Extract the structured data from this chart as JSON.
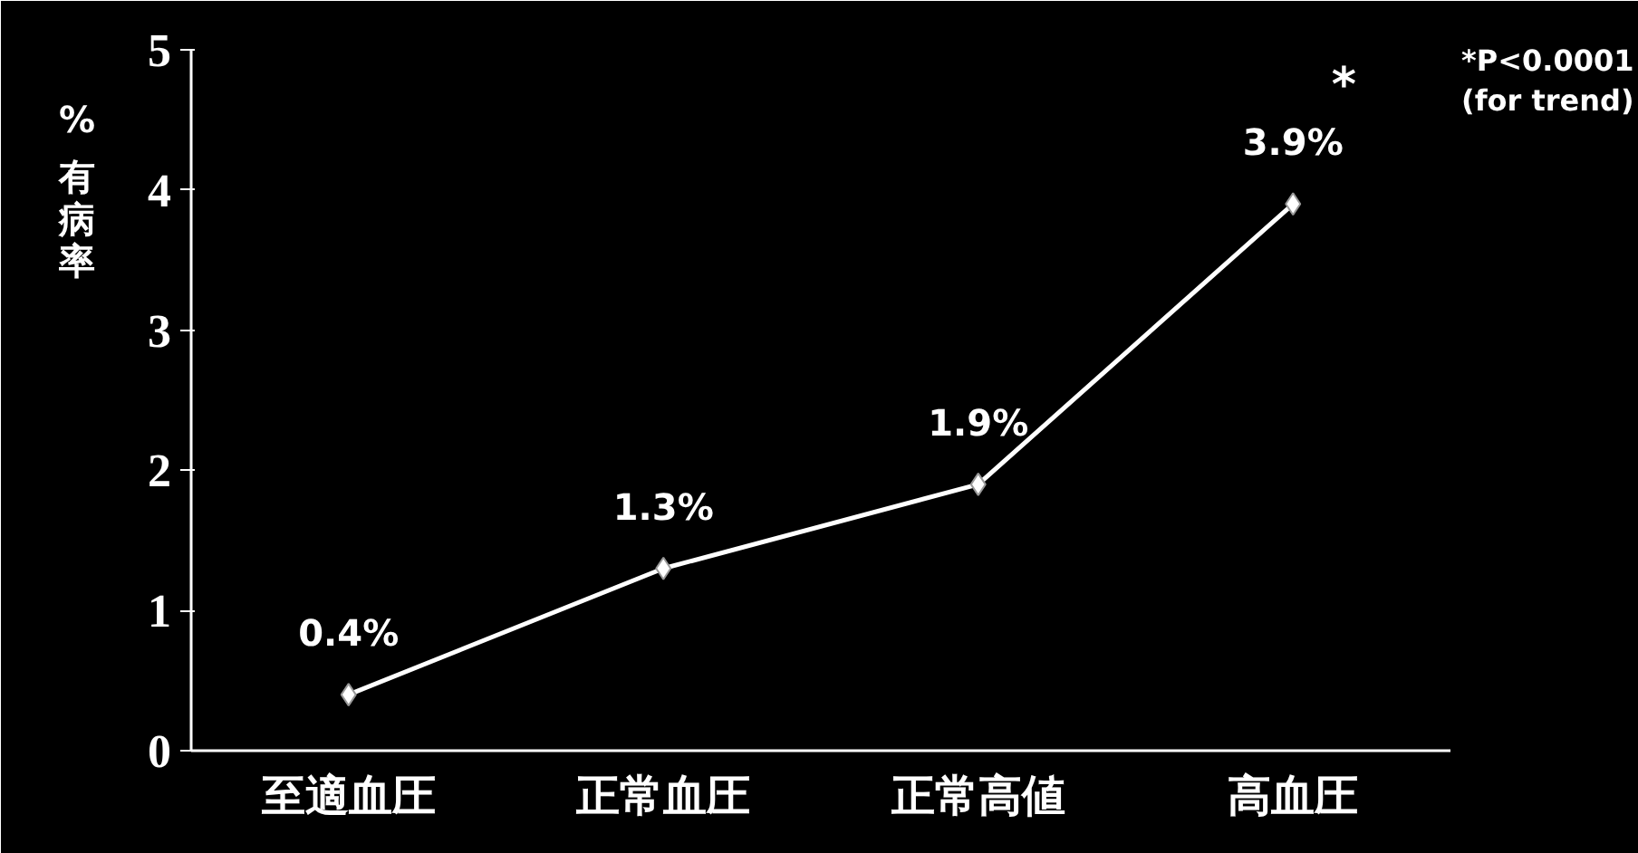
{
  "chart_data": {
    "type": "line",
    "categories": [
      "至適血圧",
      "正常血圧",
      "正常高値",
      "高血圧"
    ],
    "series": [
      {
        "color": "#ffffff",
        "values": [
          0.4,
          1.3,
          1.9,
          3.9
        ],
        "value_labels": [
          "0.4%",
          "1.3%",
          "1.9%",
          "3.9%"
        ]
      }
    ],
    "ylabel": "% 有病率",
    "ylim": [
      0,
      5
    ],
    "yticks": [
      0,
      1,
      2,
      3,
      4,
      5
    ],
    "grid": false,
    "marker": "diamond",
    "line_style": "solid",
    "annotations": [
      {
        "text": "*",
        "x": "高血圧",
        "y": 3.9
      },
      "*P<0.0001\n(for trend)"
    ]
  }
}
